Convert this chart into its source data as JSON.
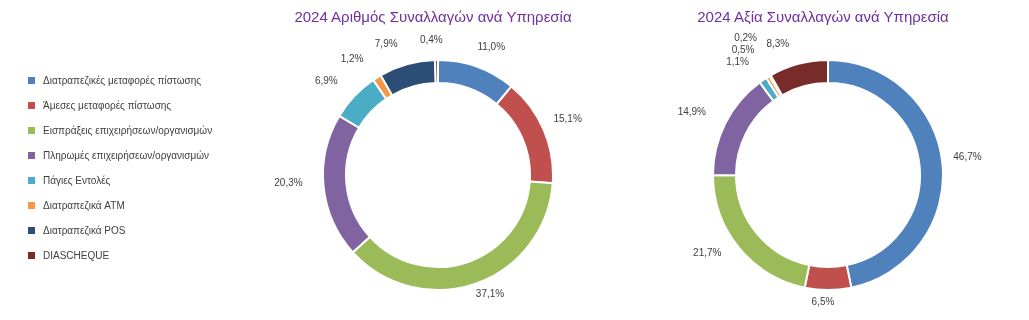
{
  "chart_data": [
    {
      "type": "donut",
      "title": "2024 Αριθμός Συναλλαγών ανά Υπηρεσία",
      "legend": "left",
      "categories": [
        "Διατραπεζικές μεταφορές πίστωσης",
        "Άμεσες μεταφορές πίστωσης",
        "Εισπράξεις επιχειρήσεων/οργανισμών",
        "Πληρωμές επιχειρήσεων/οργανισμών",
        "Πάγιες Εντολές",
        "Διατραπεζικά ATM",
        "Διατραπεζικά POS",
        "DIASCHEQUE"
      ],
      "values": [
        11.0,
        15.1,
        37.1,
        20.3,
        6.9,
        1.2,
        7.9,
        0.4
      ],
      "value_labels": [
        "11,0%",
        "15,1%",
        "37,1%",
        "20,3%",
        "6,9%",
        "1,2%",
        "7,9%",
        "0,4%"
      ],
      "colors": [
        "#4f81bd",
        "#c0504d",
        "#9bbb59",
        "#8064a2",
        "#4bacc6",
        "#f79646",
        "#2c4d75",
        "#772c2a"
      ]
    },
    {
      "type": "donut",
      "title": "2024 Αξία Συναλλαγών ανά Υπηρεσία",
      "values": [
        46.7,
        6.5,
        21.7,
        14.9,
        1.1,
        0.5,
        0.2,
        8.3
      ],
      "value_labels": [
        "46,7%",
        "6,5%",
        "21,7%",
        "14,9%",
        "1,1%",
        "0,5%",
        "0,2%",
        "8,3%"
      ],
      "colors": [
        "#4f81bd",
        "#c0504d",
        "#9bbb59",
        "#8064a2",
        "#4bacc6",
        "#f79646",
        "#2c4d75",
        "#772c2a"
      ]
    }
  ]
}
